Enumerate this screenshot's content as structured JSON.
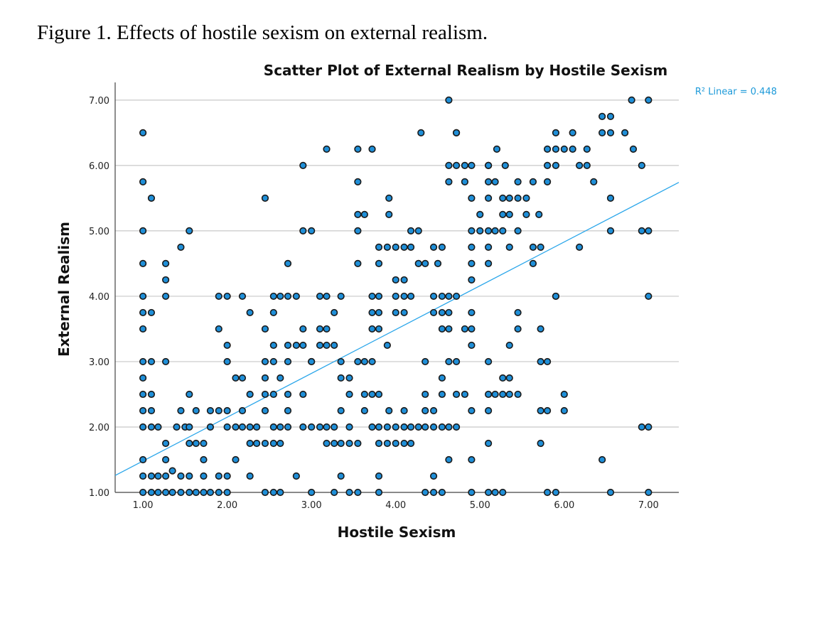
{
  "caption": "Figure 1. Effects of hostile sexism on external realism.",
  "chart_data": {
    "type": "scatter",
    "title": "Scatter Plot of External Realism by Hostile Sexism",
    "xlabel": "Hostile Sexism",
    "ylabel": "External Realism",
    "xlim": [
      0.67,
      7.36
    ],
    "ylim": [
      1.0,
      7.27
    ],
    "xticks": [
      "1.00",
      "2.00",
      "3.00",
      "4.00",
      "5.00",
      "6.00",
      "7.00"
    ],
    "yticks": [
      "1.00",
      "2.00",
      "3.00",
      "4.00",
      "5.00",
      "6.00",
      "7.00"
    ],
    "grid": "horizontal",
    "fit_line": {
      "label": "R² Linear = 0.448",
      "intercept": 0.81,
      "slope": 0.67
    },
    "colors": {
      "points": "#1f8fd8",
      "fit_line": "#2aa6ea",
      "grid": "#c8c8c8"
    },
    "rows": [
      [
        6.5,
        [
          1.0
        ]
      ],
      [
        5.75,
        [
          1.0
        ]
      ],
      [
        5.5,
        [
          1.1
        ]
      ],
      [
        5.0,
        [
          1.0,
          1.55
        ]
      ],
      [
        4.75,
        [
          1.45
        ]
      ],
      [
        4.5,
        [
          1.0,
          1.27,
          2.72
        ]
      ],
      [
        4.25,
        [
          1.27
        ]
      ],
      [
        4.0,
        [
          1.0,
          1.27
        ]
      ],
      [
        3.75,
        [
          1.0,
          1.1
        ]
      ],
      [
        3.5,
        [
          1.0
        ]
      ],
      [
        3.0,
        [
          1.0,
          1.1,
          1.27
        ]
      ],
      [
        2.75,
        [
          1.0
        ]
      ],
      [
        2.5,
        [
          1.0,
          1.1,
          1.55
        ]
      ],
      [
        2.25,
        [
          1.0,
          1.1,
          1.45,
          1.63
        ]
      ],
      [
        2.0,
        [
          1.0,
          1.1,
          1.18,
          1.4,
          1.5,
          1.55
        ]
      ],
      [
        1.75,
        [
          1.27,
          1.55,
          1.63,
          1.72
        ]
      ],
      [
        1.5,
        [
          1.0,
          1.27,
          1.72
        ]
      ],
      [
        1.33,
        [
          1.35
        ]
      ],
      [
        1.25,
        [
          1.0,
          1.1,
          1.18,
          1.27,
          1.45,
          1.55,
          1.72,
          1.9,
          2.0
        ]
      ],
      [
        1.0,
        [
          1.0,
          1.1,
          1.18,
          1.27,
          1.35,
          1.45,
          1.55,
          1.63,
          1.72,
          1.8,
          1.9,
          2.0
        ]
      ],
      [
        6.0,
        [
          2.9
        ]
      ],
      [
        5.5,
        [
          2.45
        ]
      ],
      [
        5.0,
        [
          2.9,
          3.0
        ]
      ],
      [
        4.0,
        [
          1.9,
          2.0,
          2.18,
          2.55,
          2.63,
          2.72,
          2.82,
          3.1,
          3.18,
          3.35
        ]
      ],
      [
        3.75,
        [
          2.27,
          2.55
        ]
      ],
      [
        3.5,
        [
          1.9,
          2.45,
          2.9,
          3.1,
          3.18
        ]
      ],
      [
        3.25,
        [
          2.0,
          2.55,
          2.72,
          2.82,
          2.9,
          3.18,
          3.27
        ]
      ],
      [
        3.0,
        [
          2.0,
          2.45,
          2.55,
          2.72,
          3.0
        ]
      ],
      [
        2.75,
        [
          2.1,
          2.18,
          2.45,
          2.63
        ]
      ],
      [
        2.5,
        [
          2.27,
          2.45,
          2.55,
          2.72,
          2.9
        ]
      ],
      [
        2.25,
        [
          1.8,
          1.9,
          2.0,
          2.18,
          2.45,
          2.72
        ]
      ],
      [
        2.0,
        [
          1.8,
          2.0,
          2.1,
          2.18,
          2.27,
          2.35,
          2.55,
          2.63,
          2.72,
          2.9,
          3.0,
          3.1,
          3.18,
          3.27
        ]
      ],
      [
        1.75,
        [
          2.27,
          2.35,
          2.45,
          2.55,
          2.63
        ]
      ],
      [
        1.5,
        [
          2.1
        ]
      ],
      [
        1.25,
        [
          2.27,
          2.82
        ]
      ],
      [
        1.0,
        [
          2.45,
          2.55,
          2.63,
          3.0
        ]
      ],
      [
        6.25,
        [
          3.18,
          3.55,
          3.72
        ]
      ],
      [
        5.75,
        [
          3.55
        ]
      ],
      [
        5.25,
        [
          3.55,
          3.63
        ]
      ],
      [
        5.0,
        [
          3.55
        ]
      ],
      [
        4.5,
        [
          3.55
        ]
      ],
      [
        3.75,
        [
          3.27
        ]
      ],
      [
        3.25,
        [
          3.1
        ]
      ],
      [
        3.0,
        [
          3.0,
          3.35,
          3.55,
          3.63,
          3.72
        ]
      ],
      [
        2.75,
        [
          3.35,
          3.45
        ]
      ],
      [
        2.5,
        [
          3.45,
          3.63,
          3.72,
          3.8
        ]
      ],
      [
        2.25,
        [
          3.35,
          3.63
        ]
      ],
      [
        2.0,
        [
          3.45,
          3.72
        ]
      ],
      [
        1.75,
        [
          3.18,
          3.27,
          3.35,
          3.45,
          3.55
        ]
      ],
      [
        1.25,
        [
          3.35
        ]
      ],
      [
        1.0,
        [
          3.27,
          3.45,
          3.55
        ]
      ],
      [
        6.5,
        [
          4.3,
          4.72
        ]
      ],
      [
        6.0,
        [
          4.63,
          4.72,
          4.82
        ]
      ],
      [
        5.75,
        [
          4.63,
          4.82
        ]
      ],
      [
        5.5,
        [
          3.92
        ]
      ],
      [
        5.25,
        [
          3.92
        ]
      ],
      [
        5.0,
        [
          4.18,
          4.27
        ]
      ],
      [
        4.75,
        [
          3.8,
          3.9,
          4.0,
          4.1,
          4.18,
          4.45,
          4.55
        ]
      ],
      [
        4.5,
        [
          3.8,
          4.27,
          4.35,
          4.5
        ]
      ],
      [
        4.25,
        [
          4.0,
          4.1
        ]
      ],
      [
        4.0,
        [
          3.72,
          3.8,
          4.0,
          4.1,
          4.18,
          4.45,
          4.55,
          4.63,
          4.72
        ]
      ],
      [
        3.75,
        [
          3.72,
          3.8,
          4.0,
          4.1,
          4.45,
          4.55,
          4.63
        ]
      ],
      [
        3.5,
        [
          3.72,
          3.8,
          4.55,
          4.63,
          4.82
        ]
      ],
      [
        3.25,
        [
          3.9
        ]
      ],
      [
        3.0,
        [
          4.35,
          4.63,
          4.72
        ]
      ],
      [
        2.75,
        [
          4.55
        ]
      ],
      [
        2.5,
        [
          4.35,
          4.55,
          4.72,
          4.82
        ]
      ],
      [
        2.25,
        [
          3.92,
          4.1,
          4.35,
          4.45
        ]
      ],
      [
        2.0,
        [
          3.8,
          3.9,
          4.0,
          4.1,
          4.18,
          4.27,
          4.35,
          4.45,
          4.55,
          4.63,
          4.72
        ]
      ],
      [
        1.75,
        [
          3.8,
          3.9,
          4.0,
          4.1,
          4.18
        ]
      ],
      [
        1.5,
        [
          4.63
        ]
      ],
      [
        1.25,
        [
          3.8,
          4.45
        ]
      ],
      [
        1.0,
        [
          3.8,
          4.35,
          4.45,
          4.55
        ]
      ],
      [
        7.0,
        [
          4.63
        ]
      ],
      [
        6.5,
        [
          4.72
        ]
      ],
      [
        6.0,
        [
          4.9,
          5.1
        ]
      ],
      [
        5.75,
        [
          5.1,
          5.18
        ]
      ],
      [
        5.5,
        [
          4.9,
          5.1
        ]
      ],
      [
        5.25,
        [
          5.0,
          5.27
        ]
      ],
      [
        5.0,
        [
          4.9,
          5.0,
          5.1,
          5.18,
          5.27
        ]
      ],
      [
        4.75,
        [
          4.9,
          5.1
        ]
      ],
      [
        4.5,
        [
          4.9,
          5.1
        ]
      ],
      [
        4.25,
        [
          4.9
        ]
      ],
      [
        3.75,
        [
          4.9
        ]
      ],
      [
        3.5,
        [
          4.9
        ]
      ],
      [
        3.25,
        [
          4.9
        ]
      ],
      [
        3.0,
        [
          5.1
        ]
      ],
      [
        2.5,
        [
          5.1,
          5.18
        ]
      ],
      [
        2.25,
        [
          4.9,
          5.1
        ]
      ],
      [
        1.75,
        [
          5.1
        ]
      ],
      [
        1.5,
        [
          4.9
        ]
      ],
      [
        1.0,
        [
          4.9,
          5.1,
          5.18,
          5.27
        ]
      ],
      [
        6.25,
        [
          5.2
        ]
      ],
      [
        6.0,
        [
          5.1,
          5.3
        ]
      ],
      [
        5.75,
        [
          5.45,
          5.63
        ]
      ],
      [
        5.5,
        [
          5.27,
          5.35,
          5.45,
          5.55
        ]
      ],
      [
        5.25,
        [
          5.35,
          5.55
        ]
      ],
      [
        5.0,
        [
          5.45
        ]
      ],
      [
        4.75,
        [
          5.35
        ]
      ],
      [
        3.75,
        [
          5.45
        ]
      ],
      [
        3.5,
        [
          5.45
        ]
      ],
      [
        3.25,
        [
          5.35
        ]
      ],
      [
        2.75,
        [
          5.27,
          5.35
        ]
      ],
      [
        2.5,
        [
          5.27,
          5.35,
          5.45
        ]
      ],
      [
        6.25,
        [
          5.8,
          5.9,
          6.0,
          6.1
        ]
      ],
      [
        6.5,
        [
          5.9,
          6.1
        ]
      ],
      [
        6.0,
        [
          5.8,
          5.9
        ]
      ],
      [
        5.75,
        [
          5.8
        ]
      ],
      [
        5.25,
        [
          5.7
        ]
      ],
      [
        4.75,
        [
          5.63,
          5.72
        ]
      ],
      [
        4.5,
        [
          5.63
        ]
      ],
      [
        4.0,
        [
          5.9
        ]
      ],
      [
        3.5,
        [
          5.72
        ]
      ],
      [
        3.0,
        [
          5.72,
          5.8
        ]
      ],
      [
        2.5,
        [
          6.0
        ]
      ],
      [
        2.25,
        [
          5.72,
          5.8,
          6.0
        ]
      ],
      [
        1.75,
        [
          5.72
        ]
      ],
      [
        1.0,
        [
          5.8,
          5.9
        ]
      ],
      [
        7.0,
        [
          6.8,
          7.0
        ]
      ],
      [
        6.75,
        [
          6.45,
          6.55
        ]
      ],
      [
        6.5,
        [
          6.45,
          6.55,
          6.72
        ]
      ],
      [
        6.25,
        [
          6.27,
          6.82
        ]
      ],
      [
        6.0,
        [
          6.18,
          6.27,
          6.92
        ]
      ],
      [
        5.75,
        [
          6.35
        ]
      ],
      [
        5.5,
        [
          6.55
        ]
      ],
      [
        5.0,
        [
          6.55,
          6.92,
          7.0
        ]
      ],
      [
        4.75,
        [
          6.18
        ]
      ],
      [
        4.0,
        [
          5.9,
          7.0
        ]
      ],
      [
        2.0,
        [
          6.92,
          7.0
        ]
      ],
      [
        1.5,
        [
          6.45
        ]
      ],
      [
        1.0,
        [
          6.55,
          7.0
        ]
      ]
    ]
  }
}
